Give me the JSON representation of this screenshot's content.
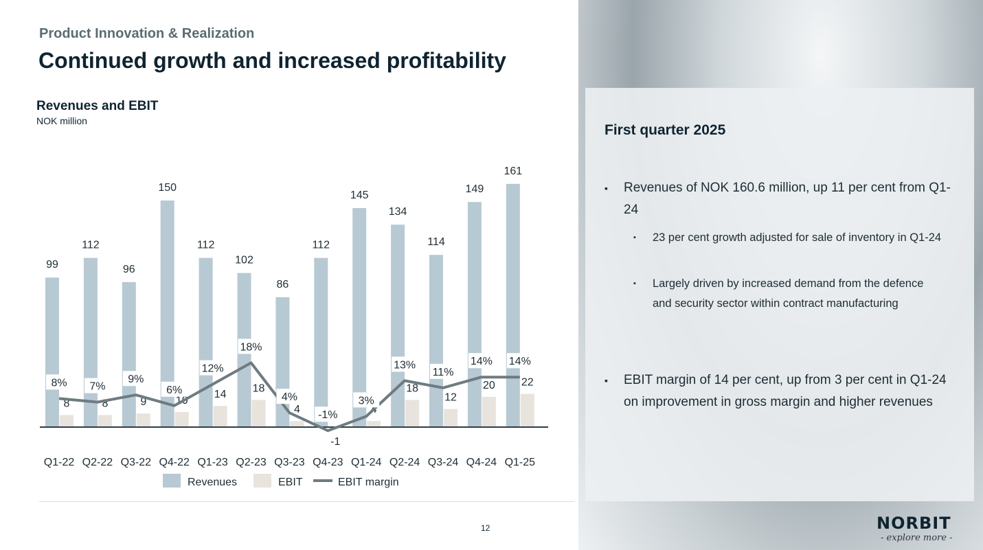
{
  "header": {
    "section": "Product Innovation & Realization",
    "title": "Continued growth and increased profitability"
  },
  "chart_data": {
    "type": "bar",
    "title": "Revenues and EBIT",
    "subtitle": "NOK million",
    "categories": [
      "Q1-22",
      "Q2-22",
      "Q3-22",
      "Q4-22",
      "Q1-23",
      "Q2-23",
      "Q3-23",
      "Q4-23",
      "Q1-24",
      "Q2-24",
      "Q3-24",
      "Q4-24",
      "Q1-25"
    ],
    "series": [
      {
        "name": "Revenues",
        "type": "bar",
        "color": "#b7c9d2",
        "values": [
          99,
          112,
          96,
          150,
          112,
          102,
          86,
          112,
          145,
          134,
          114,
          149,
          161
        ]
      },
      {
        "name": "EBIT",
        "type": "bar",
        "color": "#e8e3dd",
        "values": [
          8,
          8,
          9,
          10,
          14,
          18,
          4,
          -1,
          4,
          18,
          12,
          20,
          22
        ]
      },
      {
        "name": "EBIT margin",
        "type": "line",
        "color": "#6e7b80",
        "values": [
          8,
          7,
          9,
          6,
          12,
          18,
          4,
          -1,
          3,
          13,
          11,
          14,
          14
        ],
        "unit": "%"
      }
    ],
    "legend": "bottom",
    "grid": false
  },
  "panel": {
    "title": "First quarter 2025",
    "bullets": [
      {
        "text": "Revenues of NOK 160.6 million, up 11 per cent from Q1-24",
        "sub": [
          "23 per cent growth adjusted for sale of inventory in Q1-24",
          "Largely driven by increased demand from the defence and security sector within contract manufacturing"
        ]
      },
      {
        "text": "EBIT margin of 14 per cent, up from 3 per cent in Q1-24 on improvement in gross margin and higher revenues"
      }
    ]
  },
  "footer": {
    "page": "12",
    "logo": "NORBIT",
    "tagline": "- explore more -"
  }
}
